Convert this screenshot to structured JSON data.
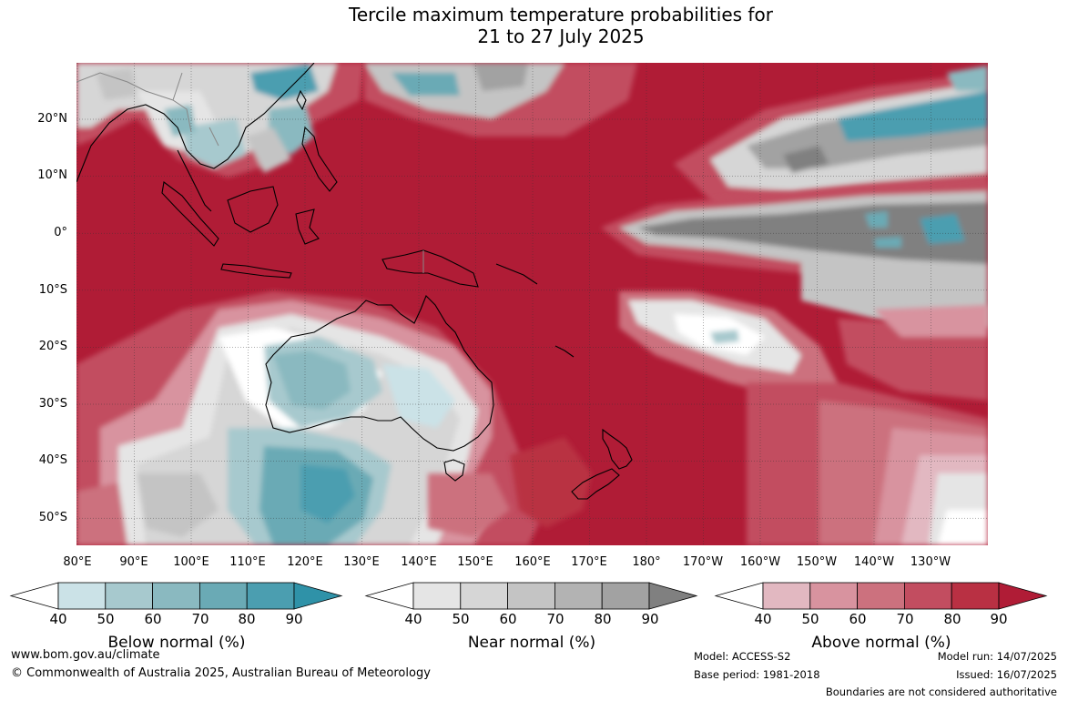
{
  "title": {
    "line1": "Tercile maximum temperature probabilities for",
    "line2": "21 to 27 July 2025"
  },
  "map": {
    "lat_labels": [
      "20°N",
      "10°N",
      "0°",
      "10°S",
      "20°S",
      "30°S",
      "40°S",
      "50°S"
    ],
    "lon_labels": [
      "80°E",
      "90°E",
      "100°E",
      "110°E",
      "120°E",
      "130°E",
      "140°E",
      "150°E",
      "160°E",
      "170°E",
      "180°",
      "170°W",
      "160°W",
      "150°W",
      "140°W",
      "130°W"
    ],
    "colors": {
      "above": [
        "#e2b8c1",
        "#d8939f",
        "#cc717e",
        "#c24d60",
        "#b93043",
        "#b01c36"
      ],
      "near": [
        "#e5e5e5",
        "#d6d6d6",
        "#c4c4c4",
        "#b3b3b3",
        "#a2a2a2",
        "#808080"
      ],
      "below": [
        "#cbe2e7",
        "#a7c9ce",
        "#8ab9c0",
        "#6aaab5",
        "#4b9eb0",
        "#2f92a8"
      ]
    }
  },
  "colorbars": [
    {
      "title": "Below normal (%)",
      "ticks": [
        "40",
        "50",
        "60",
        "70",
        "80",
        "90"
      ],
      "colors": [
        "#cbe2e7",
        "#a7c9ce",
        "#8ab9c0",
        "#6aaab5",
        "#4b9eb0",
        "#2f92a8"
      ]
    },
    {
      "title": "Near normal (%)",
      "ticks": [
        "40",
        "50",
        "60",
        "70",
        "80",
        "90"
      ],
      "colors": [
        "#e5e5e5",
        "#d6d6d6",
        "#c4c4c4",
        "#b3b3b3",
        "#a2a2a2",
        "#808080"
      ]
    },
    {
      "title": "Above normal (%)",
      "ticks": [
        "40",
        "50",
        "60",
        "70",
        "80",
        "90"
      ],
      "colors": [
        "#e2b8c1",
        "#d8939f",
        "#cc717e",
        "#c24d60",
        "#b93043",
        "#b01c36"
      ]
    }
  ],
  "footer": {
    "website": "www.bom.gov.au/climate",
    "copyright": "© Commonwealth of Australia 2025, Australian Bureau of Meteorology",
    "model": "Model: ACCESS-S2",
    "base_period": "Base period: 1981-2018",
    "model_run": "Model run: 14/07/2025",
    "issued": "Issued: 16/07/2025",
    "disclaimer": "Boundaries are not considered authoritative"
  }
}
